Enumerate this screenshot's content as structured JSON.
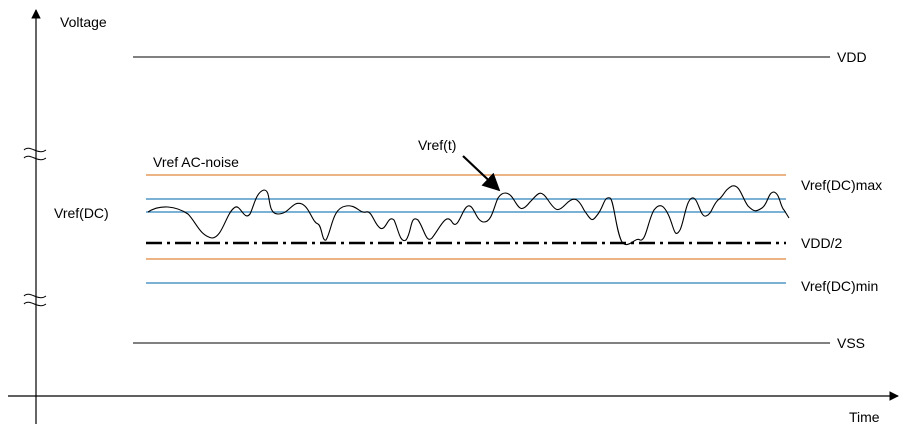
{
  "axes": {
    "y_label": "Voltage",
    "x_label": "Time"
  },
  "lines": {
    "vdd": "VDD",
    "vss": "VSS",
    "vdd_half": "VDD/2",
    "vref_ac_noise": "Vref AC-noise",
    "vref_dc_max": "Vref(DC)max",
    "vref_dc_min": "Vref(DC)min",
    "vref_dc": "Vref(DC)",
    "vref_t": "Vref(t)"
  },
  "colors": {
    "axis": "#000000",
    "ac_noise_band": "#e0883a",
    "dc_band": "#2f82be",
    "signal": "#000000"
  }
}
